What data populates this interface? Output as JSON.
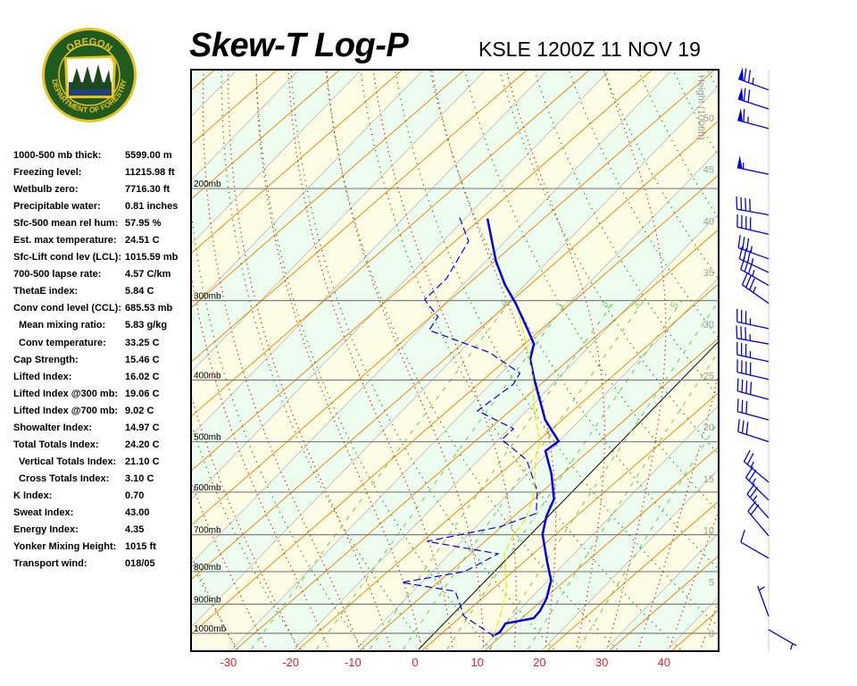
{
  "header": {
    "title": "Skew-T Log-P",
    "station": "KSLE 1200Z 11 NOV 19"
  },
  "logo": {
    "top_text": "OREGON",
    "bottom_text": "DEPARTMENT OF FORESTRY",
    "colors": {
      "green": "#1f5a1f",
      "gold": "#e8c21a"
    }
  },
  "stats": [
    {
      "label": "1000-500 mb thick:",
      "value": "5599.00 m"
    },
    {
      "label": "Freezing level:",
      "value": "11215.98 ft"
    },
    {
      "label": "Wetbulb zero:",
      "value": "7716.30 ft"
    },
    {
      "label": "Precipitable water:",
      "value": "0.81 inches"
    },
    {
      "label": "Sfc-500 mean rel hum:",
      "value": "57.95 %"
    },
    {
      "label": "Est. max temperature:",
      "value": "24.51 C"
    },
    {
      "label": "Sfc-Lift cond lev (LCL):",
      "value": "1015.59 mb"
    },
    {
      "label": "700-500 lapse rate:",
      "value": "4.57 C/km"
    },
    {
      "label": "ThetaE index:",
      "value": "5.84 C"
    },
    {
      "label": "Conv cond level (CCL):",
      "value": "685.53 mb"
    },
    {
      "label": "Mean mixing ratio:",
      "value": "5.83 g/kg",
      "sub": true
    },
    {
      "label": "Conv temperature:",
      "value": "33.25 C",
      "sub": true
    },
    {
      "label": "Cap Strength:",
      "value": "15.46 C"
    },
    {
      "label": "Lifted Index:",
      "value": "16.02 C"
    },
    {
      "label": "Lifted Index @300 mb:",
      "value": "19.06 C"
    },
    {
      "label": "Lifted Index @700 mb:",
      "value": "9.02 C"
    },
    {
      "label": "Showalter Index:",
      "value": "14.97 C"
    },
    {
      "label": "Total Totals Index:",
      "value": "24.20 C"
    },
    {
      "label": "Vertical Totals Index:",
      "value": "21.10 C",
      "sub": true
    },
    {
      "label": "Cross Totals Index:",
      "value": "3.10 C",
      "sub": true
    },
    {
      "label": "K Index:",
      "value": "0.70"
    },
    {
      "label": "Sweat Index:",
      "value": "43.00"
    },
    {
      "label": "Energy Index:",
      "value": "4.35"
    },
    {
      "label": "Yonker Mixing Height:",
      "value": "1015 ft"
    },
    {
      "label": "Transport wind:",
      "value": "018/05"
    }
  ],
  "chart_data": {
    "type": "line",
    "subtype": "skew-t log-p",
    "x_ticks": [
      -30,
      -20,
      -10,
      0,
      10,
      20,
      30,
      40
    ],
    "xlim": [
      -36,
      48
    ],
    "pressure_levels": [
      {
        "p": 200,
        "label": "200mb"
      },
      {
        "p": 300,
        "label": "300mb"
      },
      {
        "p": 400,
        "label": "400mb"
      },
      {
        "p": 500,
        "label": "500mb"
      },
      {
        "p": 600,
        "label": "600mb"
      },
      {
        "p": 700,
        "label": "700mb"
      },
      {
        "p": 800,
        "label": "800mb"
      },
      {
        "p": 900,
        "label": "900mb"
      },
      {
        "p": 1000,
        "label": "1000mb"
      }
    ],
    "height_axis": {
      "title": "Height (1000ft)",
      "ticks": [
        0,
        5,
        10,
        15,
        20,
        25,
        30,
        35,
        40,
        45,
        50
      ]
    },
    "mixing_ratio_labels": [
      ".4",
      "1",
      "2",
      "3",
      "5"
    ],
    "mixing_ratios": [
      0.4,
      1,
      2,
      3,
      5,
      8,
      12,
      20
    ],
    "ylim_mb": [
      1010,
      130
    ],
    "series": [
      {
        "kind": "temperature",
        "color": "#0000ee",
        "points": [
          [
            1010,
            9.7
          ],
          [
            997,
            10.4
          ],
          [
            965,
            9.9
          ],
          [
            947,
            13.6
          ],
          [
            923,
            13.5
          ],
          [
            882,
            12.6
          ],
          [
            826,
            10.5
          ],
          [
            770,
            6.8
          ],
          [
            699,
            1.9
          ],
          [
            655,
            -0.3
          ],
          [
            615,
            -1.8
          ],
          [
            561,
            -6.2
          ],
          [
            517,
            -10.7
          ],
          [
            499,
            -10.1
          ],
          [
            462,
            -15.6
          ],
          [
            399,
            -23.7
          ],
          [
            371,
            -27.5
          ],
          [
            351,
            -29.3
          ],
          [
            334,
            -32.4
          ],
          [
            303,
            -38.6
          ],
          [
            283,
            -43.3
          ],
          [
            260,
            -48.4
          ],
          [
            223,
            -56.4
          ]
        ]
      },
      {
        "kind": "dewpoint",
        "color": "#0000ee",
        "points": [
          [
            1010,
            10.0
          ],
          [
            940,
            2.1
          ],
          [
            859,
            -3.2
          ],
          [
            832,
            -13.2
          ],
          [
            800,
            -4.8
          ],
          [
            750,
            -2.2
          ],
          [
            717,
            -15.6
          ],
          [
            680,
            -6.1
          ],
          [
            648,
            -2.4
          ],
          [
            598,
            -5.7
          ],
          [
            534,
            -12.3
          ],
          [
            496,
            -19.5
          ],
          [
            477,
            -19.3
          ],
          [
            447,
            -27.9
          ],
          [
            406,
            -26.3
          ],
          [
            390,
            -27.0
          ],
          [
            362,
            -35.1
          ],
          [
            334,
            -48.3
          ],
          [
            318,
            -49.0
          ],
          [
            299,
            -53.8
          ],
          [
            277,
            -53.6
          ],
          [
            242,
            -55.9
          ],
          [
            222,
            -61.1
          ]
        ]
      },
      {
        "kind": "wetbulb",
        "color": "#e8e800",
        "points": [
          [
            1010,
            10.0
          ],
          [
            940,
            7.9
          ],
          [
            854,
            4.8
          ],
          [
            750,
            -1.2
          ],
          [
            703,
            -2.6
          ],
          [
            659,
            -3.2
          ],
          [
            598,
            -6.2
          ],
          [
            526,
            -11.5
          ],
          [
            501,
            -12.9
          ],
          [
            447,
            -18.8
          ],
          [
            393,
            -24.6
          ],
          [
            345,
            -31.5
          ],
          [
            313,
            -36.8
          ]
        ]
      }
    ],
    "winds": [
      {
        "p": 140,
        "dir": 290,
        "spd": 75
      },
      {
        "p": 150,
        "dir": 288,
        "spd": 70
      },
      {
        "p": 161,
        "dir": 285,
        "spd": 65
      },
      {
        "p": 190,
        "dir": 282,
        "spd": 55
      },
      {
        "p": 220,
        "dir": 280,
        "spd": 40
      },
      {
        "p": 236,
        "dir": 283,
        "spd": 40
      },
      {
        "p": 258,
        "dir": 290,
        "spd": 35
      },
      {
        "p": 271,
        "dir": 295,
        "spd": 35
      },
      {
        "p": 284,
        "dir": 300,
        "spd": 35
      },
      {
        "p": 303,
        "dir": 305,
        "spd": 35
      },
      {
        "p": 332,
        "dir": 282,
        "spd": 35
      },
      {
        "p": 351,
        "dir": 280,
        "spd": 35
      },
      {
        "p": 374,
        "dir": 282,
        "spd": 35
      },
      {
        "p": 399,
        "dir": 283,
        "spd": 40
      },
      {
        "p": 429,
        "dir": 285,
        "spd": 40
      },
      {
        "p": 462,
        "dir": 285,
        "spd": 30
      },
      {
        "p": 500,
        "dir": 288,
        "spd": 30
      },
      {
        "p": 579,
        "dir": 310,
        "spd": 25
      },
      {
        "p": 618,
        "dir": 315,
        "spd": 25
      },
      {
        "p": 659,
        "dir": 318,
        "spd": 25
      },
      {
        "p": 703,
        "dir": 320,
        "spd": 20
      },
      {
        "p": 762,
        "dir": 300,
        "spd": 10
      },
      {
        "p": 940,
        "dir": 340,
        "spd": 5
      },
      {
        "p": 987,
        "dir": 120,
        "spd": 5
      }
    ],
    "colors": {
      "band_a": "#fdfde6",
      "band_b": "#ecfdf0",
      "isotherm": "#707070",
      "orange": "#f08a10",
      "dry_adiabat": "#008800",
      "moist_adiabat": "#ee0000",
      "mixing_ratio": "#66cc44",
      "barb": "#0000ee"
    }
  }
}
